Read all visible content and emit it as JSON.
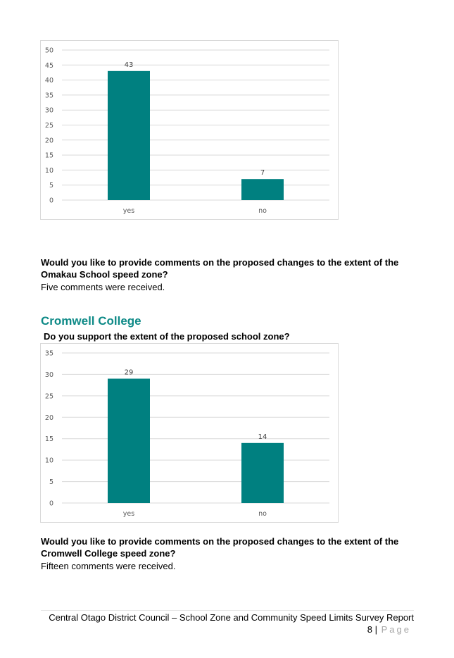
{
  "chart_data": [
    {
      "type": "bar",
      "categories": [
        "yes",
        "no"
      ],
      "values": [
        43,
        7
      ],
      "ylim": [
        0,
        50
      ],
      "yticks": [
        0,
        5,
        10,
        15,
        20,
        25,
        30,
        35,
        40,
        45,
        50
      ],
      "grid": true,
      "bar_color": "#008080",
      "data_labels": [
        "43",
        "7"
      ]
    },
    {
      "type": "bar",
      "title": "Do you support the extent of the proposed school zone?",
      "categories": [
        "yes",
        "no"
      ],
      "values": [
        29,
        14
      ],
      "ylim": [
        0,
        35
      ],
      "yticks": [
        0,
        5,
        10,
        15,
        20,
        25,
        30,
        35
      ],
      "grid": true,
      "bar_color": "#008080",
      "data_labels": [
        "29",
        "14"
      ]
    }
  ],
  "omakau": {
    "question": "Would you like to provide comments on the proposed changes to the extent of the Omakau School speed zone?",
    "answer": "Five comments were received."
  },
  "cromwell": {
    "heading": "Cromwell College",
    "chart_title": "Do you support the extent of the proposed school zone?",
    "question": "Would you like to provide comments on the proposed changes to the extent of the Cromwell College speed zone?",
    "answer": "Fifteen comments were received."
  },
  "footer": {
    "report_title": "Central Otago District Council – School Zone and Community Speed Limits Survey Report",
    "page_number": "8",
    "separator": "|",
    "page_word": "Page"
  },
  "colors": {
    "accent": "#0e8a87",
    "bar": "#008080",
    "grid": "#d9d9d9"
  }
}
